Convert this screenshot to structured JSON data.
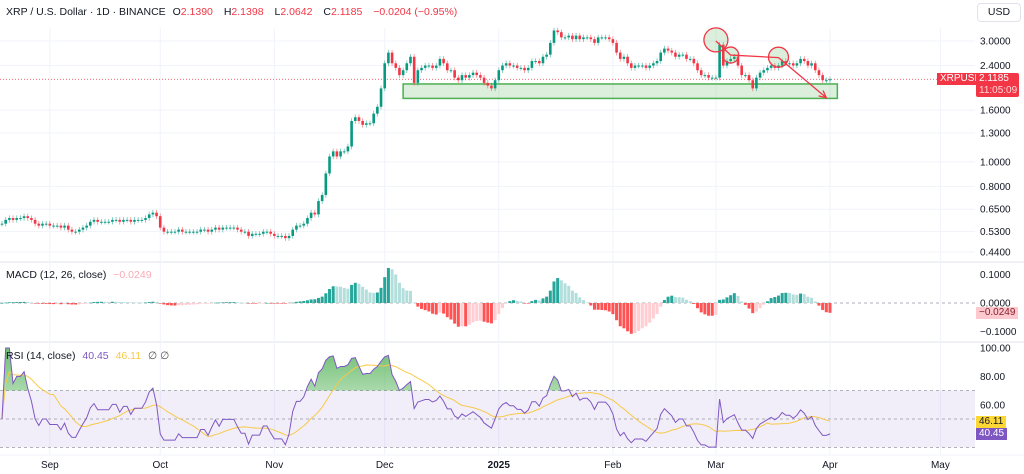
{
  "header": {
    "symbol": "XRP / U.S. Dollar · 1D · BINANCE",
    "o_label": "O",
    "o_value": "2.1390",
    "h_label": "H",
    "h_value": "2.1398",
    "l_label": "L",
    "l_value": "2.0642",
    "c_label": "C",
    "c_value": "2.1185",
    "change": "−0.0204 (−0.95%)"
  },
  "currency_button": "USD",
  "price_tag": {
    "symbol": "XRPUSD",
    "price": "2.1185",
    "countdown": "11:05:09"
  },
  "macd": {
    "title": "MACD (12, 26, close)",
    "value": "−0.0249",
    "axis_labels": [
      {
        "v": 0.1,
        "t": "0.1000"
      },
      {
        "v": 0,
        "t": "0.0000"
      },
      {
        "v": -0.1,
        "t": "−0.1000"
      }
    ]
  },
  "rsi": {
    "title": "RSI (14, close)",
    "value": "40.45",
    "ma_value": "46.11",
    "flags": "∅ ∅",
    "axis_labels": [
      {
        "v": 100,
        "t": "100.00"
      },
      {
        "v": 80,
        "t": "80.00"
      },
      {
        "v": 60,
        "t": "60.00"
      }
    ]
  },
  "colors": {
    "up": "#089981",
    "down": "#f23645",
    "rsi": "#7e57c2",
    "rsi_ma": "#f7c948",
    "zone": "#4caf50",
    "annotation": "#f23645"
  },
  "chart_data": {
    "type": "candlestick",
    "scale": "log",
    "x_range": [
      "2024-08-19",
      "2025-05-08"
    ],
    "y_ticks": [
      {
        "v": 3.0,
        "t": "3.0000"
      },
      {
        "v": 2.4,
        "t": "2.4000"
      },
      {
        "v": 1.6,
        "t": "1.6000"
      },
      {
        "v": 1.3,
        "t": "1.3000"
      },
      {
        "v": 1.0,
        "t": "1.0000"
      },
      {
        "v": 0.8,
        "t": "0.8000"
      },
      {
        "v": 0.65,
        "t": "0.6500"
      },
      {
        "v": 0.53,
        "t": "0.5300"
      },
      {
        "v": 0.44,
        "t": "0.4400"
      }
    ],
    "x_ticks": [
      {
        "d": "2024-09-01",
        "t": "Sep"
      },
      {
        "d": "2024-10-01",
        "t": "Oct"
      },
      {
        "d": "2024-11-01",
        "t": "Nov"
      },
      {
        "d": "2024-12-01",
        "t": "Dec"
      },
      {
        "d": "2025-01-01",
        "t": "2025",
        "bold": true
      },
      {
        "d": "2025-02-01",
        "t": "Feb"
      },
      {
        "d": "2025-03-01",
        "t": "Mar"
      },
      {
        "d": "2025-04-01",
        "t": "Apr"
      },
      {
        "d": "2025-05-01",
        "t": "May"
      }
    ],
    "grid": true,
    "closes": [
      0.57,
      0.59,
      0.6,
      0.59,
      0.6,
      0.6,
      0.61,
      0.6,
      0.59,
      0.57,
      0.56,
      0.57,
      0.57,
      0.56,
      0.56,
      0.56,
      0.55,
      0.56,
      0.54,
      0.53,
      0.53,
      0.54,
      0.55,
      0.56,
      0.58,
      0.59,
      0.58,
      0.58,
      0.58,
      0.58,
      0.59,
      0.59,
      0.58,
      0.59,
      0.59,
      0.58,
      0.59,
      0.59,
      0.59,
      0.6,
      0.62,
      0.63,
      0.61,
      0.55,
      0.53,
      0.53,
      0.53,
      0.53,
      0.54,
      0.53,
      0.53,
      0.53,
      0.53,
      0.53,
      0.54,
      0.54,
      0.53,
      0.54,
      0.55,
      0.54,
      0.55,
      0.55,
      0.55,
      0.55,
      0.54,
      0.53,
      0.53,
      0.51,
      0.52,
      0.52,
      0.52,
      0.53,
      0.53,
      0.52,
      0.51,
      0.51,
      0.51,
      0.5,
      0.51,
      0.54,
      0.56,
      0.56,
      0.57,
      0.6,
      0.63,
      0.62,
      0.7,
      0.74,
      0.9,
      1.05,
      1.1,
      1.05,
      1.1,
      1.1,
      1.15,
      1.45,
      1.5,
      1.45,
      1.4,
      1.42,
      1.42,
      1.55,
      1.65,
      1.95,
      2.45,
      2.7,
      2.45,
      2.35,
      2.2,
      2.3,
      2.45,
      2.6,
      2.05,
      2.3,
      2.35,
      2.4,
      2.4,
      2.35,
      2.4,
      2.55,
      2.45,
      2.3,
      2.3,
      2.15,
      2.1,
      2.2,
      2.15,
      2.2,
      2.25,
      2.2,
      2.15,
      2.05,
      2.0,
      1.95,
      2.1,
      2.3,
      2.4,
      2.45,
      2.4,
      2.4,
      2.35,
      2.35,
      2.3,
      2.35,
      2.5,
      2.5,
      2.45,
      2.6,
      2.65,
      2.95,
      3.3,
      3.25,
      3.1,
      3.1,
      3.15,
      3.05,
      3.15,
      3.05,
      3.1,
      3.1,
      3.05,
      2.95,
      3.1,
      3.1,
      3.1,
      3.05,
      2.95,
      2.7,
      2.55,
      2.6,
      2.45,
      2.35,
      2.4,
      2.4,
      2.4,
      2.35,
      2.4,
      2.45,
      2.5,
      2.7,
      2.8,
      2.75,
      2.7,
      2.6,
      2.65,
      2.65,
      2.55,
      2.55,
      2.45,
      2.3,
      2.2,
      2.2,
      2.15,
      2.15,
      2.15,
      2.9,
      2.4,
      2.5,
      2.55,
      2.6,
      2.4,
      2.2,
      2.2,
      2.1,
      1.95,
      2.15,
      2.25,
      2.3,
      2.35,
      2.4,
      2.35,
      2.4,
      2.5,
      2.45,
      2.45,
      2.4,
      2.45,
      2.55,
      2.5,
      2.4,
      2.45,
      2.3,
      2.2,
      2.1,
      2.1,
      2.1185
    ],
    "last_price": 2.1185,
    "annotations": {
      "support_zone": {
        "from": "2024-12-06",
        "to": "2025-04-03",
        "top": 2.03,
        "bottom": 1.78
      },
      "circles": [
        {
          "d": "2025-03-01",
          "p": 3.03,
          "size": "large"
        },
        {
          "d": "2025-03-05",
          "p": 2.64,
          "size": "small"
        },
        {
          "d": "2025-03-18",
          "p": 2.59,
          "size": "medium"
        }
      ],
      "trend_path": [
        {
          "d": "2025-03-01",
          "p": 3.0
        },
        {
          "d": "2025-03-05",
          "p": 2.64
        },
        {
          "d": "2025-03-18",
          "p": 2.58
        },
        {
          "d": "2025-03-31",
          "p": 1.79
        }
      ]
    }
  }
}
